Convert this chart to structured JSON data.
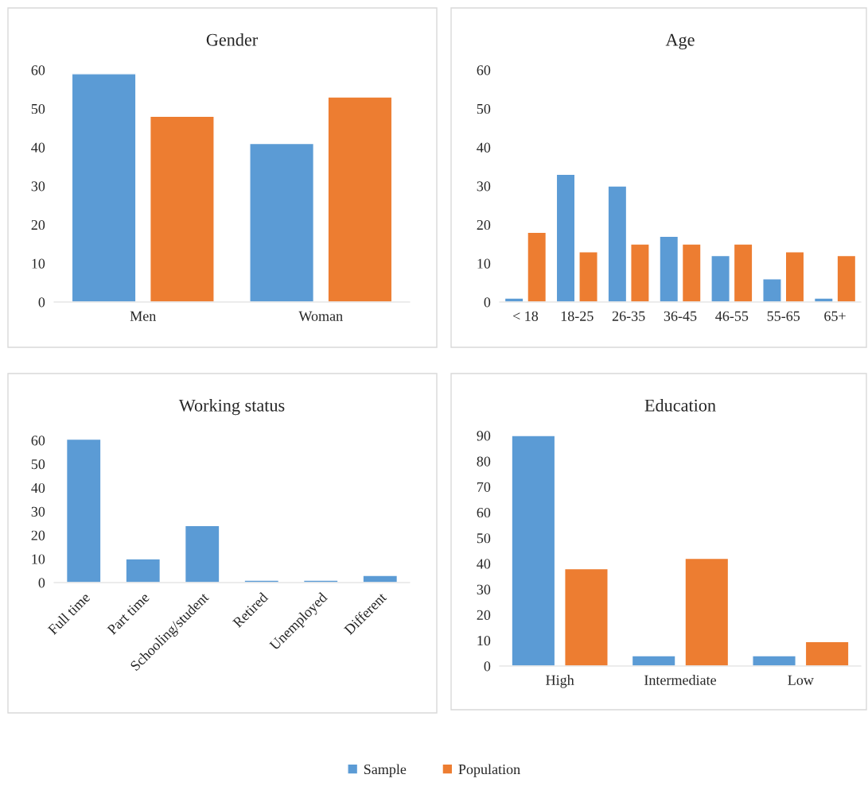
{
  "chart_data": [
    {
      "type": "bar",
      "title": "Gender",
      "categories": [
        "Men",
        "Woman"
      ],
      "ylim": [
        0,
        60
      ],
      "yticks": [
        0,
        10,
        20,
        30,
        40,
        50,
        60
      ],
      "legend": "bottom",
      "series": [
        {
          "name": "Sample",
          "color": "#5b9bd5",
          "values": [
            59,
            41
          ]
        },
        {
          "name": "Population",
          "color": "#ed7d31",
          "values": [
            48,
            53
          ]
        }
      ]
    },
    {
      "type": "bar",
      "title": "Age",
      "categories": [
        "< 18",
        "18-25",
        "26-35",
        "36-45",
        "46-55",
        "55-65",
        "65+"
      ],
      "ylim": [
        0,
        60
      ],
      "yticks": [
        0,
        10,
        20,
        30,
        40,
        50,
        60
      ],
      "legend": "bottom",
      "series": [
        {
          "name": "Sample",
          "color": "#5b9bd5",
          "values": [
            1,
            33,
            30,
            17,
            12,
            6,
            1
          ]
        },
        {
          "name": "Population",
          "color": "#ed7d31",
          "values": [
            18,
            13,
            15,
            15,
            15,
            13,
            12
          ]
        }
      ]
    },
    {
      "type": "bar",
      "title": "Working status",
      "categories": [
        "Full time",
        "Part time",
        "Schooling/student",
        "Retired",
        "Unemployed",
        "Different"
      ],
      "ylim": [
        0,
        62
      ],
      "yticks": [
        0,
        10,
        20,
        30,
        40,
        50,
        60
      ],
      "legend": "bottom",
      "series": [
        {
          "name": "Sample",
          "color": "#5b9bd5",
          "values": [
            60.5,
            10,
            24,
            1,
            1,
            3
          ]
        }
      ]
    },
    {
      "type": "bar",
      "title": "Education",
      "categories": [
        "High",
        "Intermediate",
        "Low"
      ],
      "ylim": [
        0,
        90
      ],
      "yticks": [
        0,
        10,
        20,
        30,
        40,
        50,
        60,
        70,
        80,
        90
      ],
      "legend": "bottom",
      "series": [
        {
          "name": "Sample",
          "color": "#5b9bd5",
          "values": [
            90,
            4,
            4
          ]
        },
        {
          "name": "Population",
          "color": "#ed7d31",
          "values": [
            38,
            42,
            9.5
          ]
        }
      ]
    }
  ]
}
